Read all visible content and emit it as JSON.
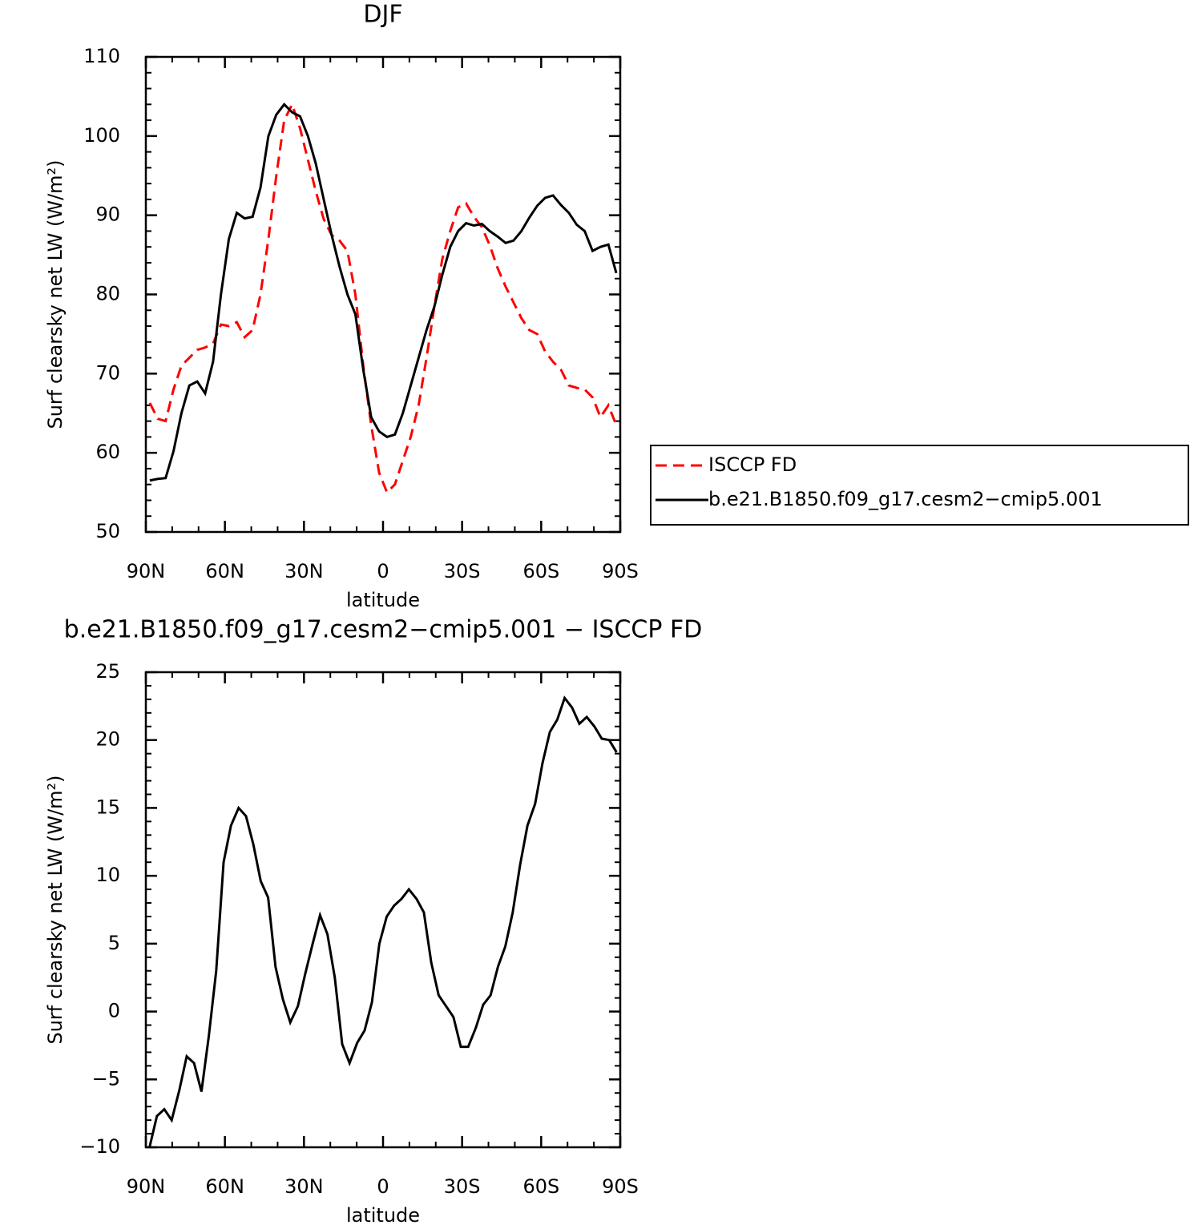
{
  "chart_data": [
    {
      "type": "line",
      "title": "DJF",
      "x_label": "latitude",
      "y_label": "Surf clearsky net LW (W/m²)",
      "x": [
        88.5,
        85.5,
        82.5,
        79.5,
        76.5,
        73.5,
        70.5,
        67.5,
        64.5,
        61.5,
        58.5,
        55.5,
        52.5,
        49.5,
        46.5,
        43.5,
        40.5,
        37.5,
        34.5,
        31.5,
        28.5,
        25.5,
        22.5,
        19.5,
        16.5,
        13.5,
        10.5,
        7.5,
        4.5,
        1.5,
        -1.5,
        -4.5,
        -7.5,
        -10.5,
        -13.5,
        -16.5,
        -19.5,
        -22.5,
        -25.5,
        -28.5,
        -31.5,
        -34.5,
        -37.5,
        -40.5,
        -43.5,
        -46.5,
        -49.5,
        -52.5,
        -55.5,
        -58.5,
        -61.5,
        -64.5,
        -67.5,
        -70.5,
        -73.5,
        -76.5,
        -79.5,
        -82.5,
        -85.5,
        -88.5
      ],
      "series": [
        {
          "name": "ISCCP FD",
          "color": "#ff0000",
          "line_style": "dashed",
          "values": [
            66.3,
            64.3,
            64,
            68,
            71,
            72,
            73,
            73.3,
            73.8,
            76.2,
            76,
            76.5,
            74.6,
            75.5,
            80,
            87,
            95,
            102,
            104,
            101,
            97,
            93,
            89.5,
            87.5,
            86.8,
            85.5,
            80,
            71,
            63.5,
            57.5,
            55,
            56,
            59,
            62,
            66,
            72,
            78.5,
            84.5,
            88,
            91,
            91.5,
            89.8,
            88.5,
            86.2,
            83.3,
            81,
            79,
            77,
            75.5,
            75,
            72.8,
            71.5,
            70.5,
            68.5,
            68.2,
            68,
            67,
            64.5,
            66,
            63.5
          ]
        },
        {
          "name": "b.e21.B1850.f09_g17.cesm2−cmip5.001",
          "color": "#000000",
          "line_style": "solid",
          "values": [
            56.5,
            56.7,
            56.8,
            60.2,
            65,
            68.5,
            69,
            67.5,
            71.5,
            80,
            87,
            90.3,
            89.6,
            89.8,
            93.5,
            100,
            102.7,
            104,
            103,
            102.5,
            100,
            96.5,
            92,
            87.5,
            83.5,
            80,
            77.5,
            70.5,
            64.5,
            62.7,
            62,
            62.3,
            65,
            68.5,
            72,
            75.5,
            78.5,
            82.5,
            86,
            88,
            89,
            88.7,
            88.9,
            88,
            87.3,
            86.5,
            86.8,
            88,
            89.7,
            91.2,
            92.2,
            92.5,
            91.3,
            90.3,
            88.8,
            88,
            85.5,
            86,
            86.3,
            82.7
          ]
        }
      ],
      "xlim": [
        90,
        -90
      ],
      "xticks": [
        {
          "value": 90,
          "label": "90N"
        },
        {
          "value": 60,
          "label": "60N"
        },
        {
          "value": 30,
          "label": "30N"
        },
        0,
        {
          "value": -30,
          "label": "30S"
        },
        {
          "value": -60,
          "label": "60S"
        },
        {
          "value": -90,
          "label": "90S"
        }
      ],
      "ylim": [
        50,
        110
      ],
      "yticks": [
        50,
        60,
        70,
        80,
        90,
        100,
        110
      ],
      "legend": "right"
    },
    {
      "type": "line",
      "title": "b.e21.B1850.f09_g17.cesm2−cmip5.001 − ISCCP FD",
      "x_label": "latitude",
      "y_label": "Surf clearsky net LW (W/m²)",
      "x": [
        88.6,
        85.8,
        83.0,
        80.2,
        77.3,
        74.5,
        71.7,
        68.9,
        66.1,
        63.3,
        60.5,
        57.7,
        54.8,
        52.0,
        49.2,
        46.4,
        43.6,
        40.8,
        38.0,
        35.2,
        32.3,
        29.5,
        26.7,
        23.9,
        21.1,
        18.3,
        15.5,
        12.7,
        9.8,
        7.0,
        4.2,
        1.4,
        -1.4,
        -4.2,
        -7.0,
        -9.8,
        -12.7,
        -15.5,
        -18.3,
        -21.1,
        -23.9,
        -26.7,
        -29.5,
        -32.3,
        -35.2,
        -38.0,
        -40.8,
        -43.6,
        -46.4,
        -49.2,
        -52.0,
        -54.8,
        -57.7,
        -60.5,
        -63.3,
        -66.1,
        -68.9,
        -71.7,
        -74.5,
        -77.3,
        -80.2,
        -83.0,
        -85.8,
        -88.6
      ],
      "series": [
        {
          "color": "#000000",
          "line_style": "solid",
          "values": [
            -10,
            -7.7,
            -7.2,
            -8,
            -5.8,
            -3.3,
            -3.8,
            -5.9,
            -1.8,
            3,
            11,
            13.7,
            15,
            14.4,
            12.3,
            9.6,
            8.4,
            3.3,
            0.9,
            -0.8,
            0.4,
            2.8,
            5,
            7.1,
            5.7,
            2.5,
            -2.4,
            -3.8,
            -2.3,
            -1.4,
            0.7,
            5,
            7,
            7.8,
            8.3,
            9,
            8.3,
            7.3,
            3.6,
            1.2,
            0.4,
            -0.4,
            -2.6,
            -2.6,
            -1.2,
            0.5,
            1.2,
            3.3,
            4.8,
            7.3,
            10.8,
            13.7,
            15.3,
            18.3,
            20.6,
            21.5,
            23.1,
            22.4,
            21.2,
            21.7,
            21,
            20.1,
            20,
            19.1
          ]
        }
      ],
      "xlim": [
        90,
        -90
      ],
      "xticks": [
        {
          "value": 90,
          "label": "90N"
        },
        {
          "value": 60,
          "label": "60N"
        },
        {
          "value": 30,
          "label": "30N"
        },
        0,
        {
          "value": -30,
          "label": "30S"
        },
        {
          "value": -60,
          "label": "60S"
        },
        {
          "value": -90,
          "label": "90S"
        }
      ],
      "ylim": [
        -10,
        25
      ],
      "yticks": [
        {
          "value": -10,
          "label": "−10"
        },
        {
          "value": -5,
          "label": "−5"
        },
        0,
        5,
        10,
        15,
        20,
        25
      ]
    }
  ]
}
